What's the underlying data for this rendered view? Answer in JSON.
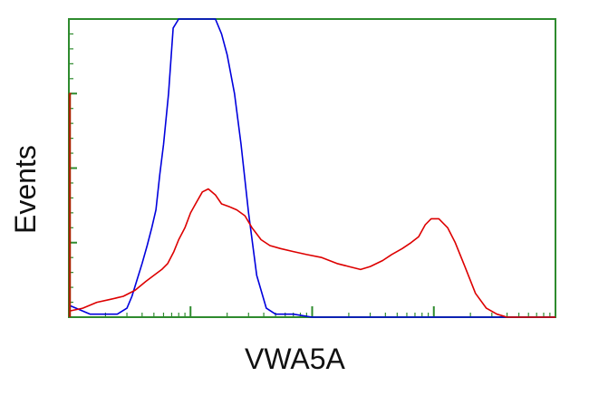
{
  "chart_data": {
    "type": "line",
    "xlabel": "VWA5A",
    "ylabel": "Events",
    "x_scale": "log",
    "xlim": [
      1,
      10000
    ],
    "ylim": [
      0,
      100
    ],
    "title": "",
    "legend": "none",
    "frame_color": "#2e8b2e",
    "series": [
      {
        "color": "#0000dd",
        "x": [
          1,
          1.5,
          2,
          2.5,
          3,
          3.3,
          3.6,
          4,
          4.4,
          4.8,
          5.2,
          5.6,
          6,
          6.6,
          7.2,
          8,
          8.8,
          9.6,
          10.5,
          11.5,
          13,
          14.5,
          16,
          18,
          20,
          23,
          26,
          30,
          35,
          42,
          50,
          70,
          100,
          200,
          500,
          1000,
          3000,
          10000
        ],
        "y": [
          4,
          1,
          1,
          1,
          3,
          7,
          12,
          18,
          24,
          30,
          36,
          48,
          58,
          75,
          97,
          100,
          100,
          100,
          100,
          100,
          100,
          100,
          100,
          95,
          88,
          75,
          58,
          35,
          14,
          3,
          1,
          1,
          0,
          0,
          0,
          0,
          0,
          0
        ]
      },
      {
        "color": "#dd0000",
        "x": [
          1,
          1.3,
          1.7,
          2.2,
          2.8,
          3.5,
          4.3,
          5,
          5.8,
          6.5,
          7.3,
          8,
          9,
          10,
          11,
          12.5,
          14,
          16,
          18,
          21,
          24,
          28,
          32,
          38,
          45,
          55,
          70,
          90,
          120,
          160,
          200,
          250,
          300,
          380,
          450,
          550,
          650,
          750,
          850,
          950,
          1100,
          1300,
          1500,
          1800,
          2200,
          2700,
          3300,
          4000,
          5000,
          7000,
          10000
        ],
        "y": [
          2,
          3,
          5,
          6,
          7,
          9,
          12,
          14,
          16,
          18,
          22,
          26,
          30,
          35,
          38,
          42,
          43,
          41,
          38,
          37,
          36,
          34,
          30,
          26,
          24,
          23,
          22,
          21,
          20,
          18,
          17,
          16,
          17,
          19,
          21,
          23,
          25,
          27,
          31,
          33,
          33,
          30,
          25,
          17,
          8,
          3,
          1,
          0,
          0,
          0,
          0
        ]
      },
      {
        "color": "#aa2200",
        "x": [
          1,
          1.05
        ],
        "y": [
          75,
          75
        ]
      }
    ]
  }
}
